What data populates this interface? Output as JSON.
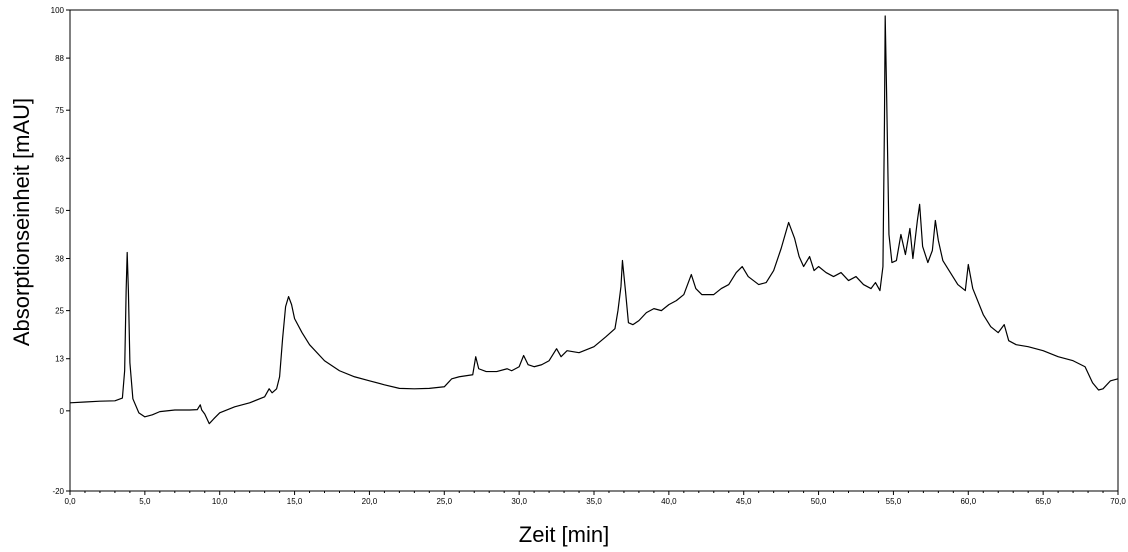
{
  "chart_data": {
    "type": "line",
    "xlabel": "Zeit [min]",
    "ylabel": "Absorptionseinheit [mAU]",
    "xlim": [
      0,
      70
    ],
    "ylim": [
      -20,
      100
    ],
    "x_ticks": [
      "0,0",
      "5,0",
      "10,0",
      "15,0",
      "20,0",
      "25,0",
      "30,0",
      "35,0",
      "40,0",
      "45,0",
      "50,0",
      "55,0",
      "60,0",
      "65,0",
      "70,0"
    ],
    "x_tick_values": [
      0,
      5,
      10,
      15,
      20,
      25,
      30,
      35,
      40,
      45,
      50,
      55,
      60,
      65,
      70
    ],
    "y_ticks": [
      "-20",
      "0",
      "13",
      "25",
      "38",
      "50",
      "63",
      "75",
      "88",
      "100"
    ],
    "y_tick_values": [
      -20,
      0,
      13,
      25,
      38,
      50,
      63,
      75,
      88,
      100
    ],
    "grid": false,
    "series": [
      {
        "color": "#000000",
        "points": [
          [
            0.0,
            2.0
          ],
          [
            1.0,
            2.2
          ],
          [
            2.0,
            2.4
          ],
          [
            3.0,
            2.5
          ],
          [
            3.5,
            3.2
          ],
          [
            3.65,
            10
          ],
          [
            3.75,
            30
          ],
          [
            3.82,
            39.5
          ],
          [
            3.9,
            30
          ],
          [
            4.0,
            12
          ],
          [
            4.2,
            3
          ],
          [
            4.6,
            -0.5
          ],
          [
            5.0,
            -1.5
          ],
          [
            5.5,
            -1.0
          ],
          [
            6.0,
            -0.2
          ],
          [
            7.0,
            0.2
          ],
          [
            8.0,
            0.2
          ],
          [
            8.5,
            0.3
          ],
          [
            8.7,
            1.5
          ],
          [
            8.8,
            0.2
          ],
          [
            9.0,
            -0.8
          ],
          [
            9.3,
            -3.2
          ],
          [
            9.6,
            -2.0
          ],
          [
            10.0,
            -0.5
          ],
          [
            11.0,
            1.0
          ],
          [
            12.0,
            2.0
          ],
          [
            13.0,
            3.5
          ],
          [
            13.3,
            5.5
          ],
          [
            13.5,
            4.5
          ],
          [
            13.8,
            5.5
          ],
          [
            14.0,
            8.5
          ],
          [
            14.2,
            18
          ],
          [
            14.4,
            26
          ],
          [
            14.6,
            28.5
          ],
          [
            14.8,
            26.5
          ],
          [
            15.0,
            23
          ],
          [
            15.5,
            19.5
          ],
          [
            16.0,
            16.5
          ],
          [
            17.0,
            12.5
          ],
          [
            18.0,
            10
          ],
          [
            19.0,
            8.5
          ],
          [
            20.0,
            7.5
          ],
          [
            21.0,
            6.5
          ],
          [
            22.0,
            5.6
          ],
          [
            23.0,
            5.5
          ],
          [
            24.0,
            5.6
          ],
          [
            25.0,
            6.0
          ],
          [
            25.5,
            8.0
          ],
          [
            26.0,
            8.5
          ],
          [
            26.9,
            9.0
          ],
          [
            27.1,
            13.5
          ],
          [
            27.3,
            10.5
          ],
          [
            27.8,
            9.8
          ],
          [
            28.5,
            9.8
          ],
          [
            29.2,
            10.5
          ],
          [
            29.5,
            10.0
          ],
          [
            30.0,
            11.0
          ],
          [
            30.3,
            13.8
          ],
          [
            30.6,
            11.5
          ],
          [
            31.0,
            11.0
          ],
          [
            31.5,
            11.5
          ],
          [
            32.0,
            12.5
          ],
          [
            32.5,
            15.5
          ],
          [
            32.8,
            13.5
          ],
          [
            33.2,
            15.0
          ],
          [
            34.0,
            14.5
          ],
          [
            35.0,
            16.0
          ],
          [
            35.8,
            18.5
          ],
          [
            36.4,
            20.5
          ],
          [
            36.6,
            25
          ],
          [
            36.8,
            31
          ],
          [
            36.9,
            37.5
          ],
          [
            37.1,
            30
          ],
          [
            37.3,
            22
          ],
          [
            37.6,
            21.5
          ],
          [
            38.0,
            22.5
          ],
          [
            38.5,
            24.5
          ],
          [
            39.0,
            25.5
          ],
          [
            39.5,
            25.0
          ],
          [
            40.0,
            26.5
          ],
          [
            40.5,
            27.5
          ],
          [
            41.0,
            29.0
          ],
          [
            41.5,
            34.0
          ],
          [
            41.8,
            30.5
          ],
          [
            42.2,
            29.0
          ],
          [
            43.0,
            29.0
          ],
          [
            43.5,
            30.5
          ],
          [
            44.0,
            31.5
          ],
          [
            44.5,
            34.5
          ],
          [
            44.9,
            36.0
          ],
          [
            45.3,
            33.5
          ],
          [
            46.0,
            31.5
          ],
          [
            46.5,
            32.0
          ],
          [
            47.0,
            35.0
          ],
          [
            47.5,
            40.5
          ],
          [
            48.0,
            47.0
          ],
          [
            48.4,
            43.0
          ],
          [
            48.7,
            38.5
          ],
          [
            49.0,
            36.0
          ],
          [
            49.4,
            38.5
          ],
          [
            49.7,
            35.0
          ],
          [
            50.0,
            36.0
          ],
          [
            50.5,
            34.5
          ],
          [
            51.0,
            33.5
          ],
          [
            51.5,
            34.5
          ],
          [
            52.0,
            32.5
          ],
          [
            52.5,
            33.5
          ],
          [
            53.0,
            31.5
          ],
          [
            53.5,
            30.5
          ],
          [
            53.8,
            32.0
          ],
          [
            54.1,
            30.0
          ],
          [
            54.3,
            36
          ],
          [
            54.4,
            72
          ],
          [
            54.45,
            98.5
          ],
          [
            54.55,
            78
          ],
          [
            54.7,
            44
          ],
          [
            54.9,
            37.0
          ],
          [
            55.2,
            37.5
          ],
          [
            55.5,
            44.0
          ],
          [
            55.8,
            39.0
          ],
          [
            56.1,
            45.5
          ],
          [
            56.3,
            38.0
          ],
          [
            56.6,
            47.5
          ],
          [
            56.75,
            51.5
          ],
          [
            56.95,
            41.0
          ],
          [
            57.3,
            37.0
          ],
          [
            57.6,
            40.0
          ],
          [
            57.8,
            47.5
          ],
          [
            58.0,
            42.5
          ],
          [
            58.3,
            37.5
          ],
          [
            58.8,
            34.5
          ],
          [
            59.3,
            31.5
          ],
          [
            59.8,
            30.0
          ],
          [
            60.0,
            36.5
          ],
          [
            60.3,
            30.5
          ],
          [
            61.0,
            24.0
          ],
          [
            61.5,
            21.0
          ],
          [
            62.0,
            19.5
          ],
          [
            62.4,
            21.5
          ],
          [
            62.7,
            17.5
          ],
          [
            63.2,
            16.5
          ],
          [
            64.0,
            16.0
          ],
          [
            65.0,
            15.0
          ],
          [
            66.0,
            13.5
          ],
          [
            67.0,
            12.5
          ],
          [
            67.8,
            11.0
          ],
          [
            68.3,
            7.0
          ],
          [
            68.7,
            5.2
          ],
          [
            69.0,
            5.5
          ],
          [
            69.5,
            7.5
          ],
          [
            70.0,
            8.0
          ]
        ]
      }
    ]
  }
}
